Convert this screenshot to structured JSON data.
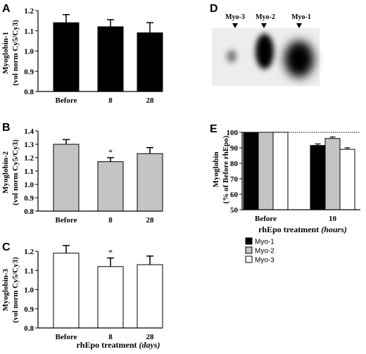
{
  "chart_data": [
    {
      "panel": "A",
      "type": "bar",
      "categories": [
        "Before",
        "8",
        "28"
      ],
      "values": [
        1.14,
        1.12,
        1.09
      ],
      "errors": [
        0.04,
        0.035,
        0.05
      ],
      "ylabel_line1": "Myoglobin-1",
      "ylabel_line2": "(vol norm Cy5/Cy3)",
      "ylim": [
        0.8,
        1.2
      ],
      "yticks": [
        "0.8",
        "0.9",
        "1.0",
        "1.1",
        "1.2"
      ],
      "bar_color": "#000000",
      "significance": [
        "",
        "",
        ""
      ]
    },
    {
      "panel": "B",
      "type": "bar",
      "categories": [
        "Before",
        "8",
        "28"
      ],
      "values": [
        1.3,
        1.17,
        1.23
      ],
      "errors": [
        0.035,
        0.03,
        0.045
      ],
      "ylabel_line1": "Myoglobin-2",
      "ylabel_line2": "(vol norm Cy5/Cy3)",
      "ylim": [
        0.8,
        1.4
      ],
      "yticks": [
        "0.8",
        "0.9",
        "1.0",
        "1.1",
        "1.2",
        "1.3",
        "1.4"
      ],
      "bar_color": "#c4c4c4",
      "significance": [
        "",
        "*",
        ""
      ]
    },
    {
      "panel": "C",
      "type": "bar",
      "categories": [
        "Before",
        "8",
        "28"
      ],
      "values": [
        1.19,
        1.12,
        1.13
      ],
      "errors": [
        0.04,
        0.045,
        0.045
      ],
      "ylabel_line1": "Myoglobin-3",
      "ylabel_line2": "(vol norm Cy5/Cy3)",
      "ylim": [
        0.8,
        1.2
      ],
      "yticks": [
        "0.8",
        "0.9",
        "1.0",
        "1.1",
        "1.2"
      ],
      "bar_color": "#ffffff",
      "significance": [
        "",
        "*",
        ""
      ],
      "xlabel_main": "rhEpo treatment ",
      "xlabel_unit": "(days)"
    },
    {
      "panel": "E",
      "type": "bar",
      "categories": [
        "Before",
        "10"
      ],
      "series": [
        {
          "name": "Myo-1",
          "color": "#000000",
          "values": [
            100,
            91.5
          ],
          "errors": [
            0,
            1.0
          ]
        },
        {
          "name": "Myo-2",
          "color": "#c4c4c4",
          "values": [
            100,
            96
          ],
          "errors": [
            0,
            1.0
          ]
        },
        {
          "name": "Myo-3",
          "color": "#ffffff",
          "values": [
            100,
            89
          ],
          "errors": [
            0,
            1.0
          ]
        }
      ],
      "ylabel_line1": "Myoglobin",
      "ylabel_line2": "(% of Before rhEpo)",
      "ylim": [
        50,
        100
      ],
      "yticks": [
        "50",
        "60",
        "70",
        "80",
        "90",
        "100"
      ],
      "reference_line": 100,
      "xlabel_main": "rhEpo treatment ",
      "xlabel_unit": "(hours)",
      "legend_position": "bottom-left"
    }
  ],
  "blot": {
    "panel": "D",
    "labels": [
      "Myo-3",
      "Myo-2",
      "Myo-1"
    ]
  }
}
